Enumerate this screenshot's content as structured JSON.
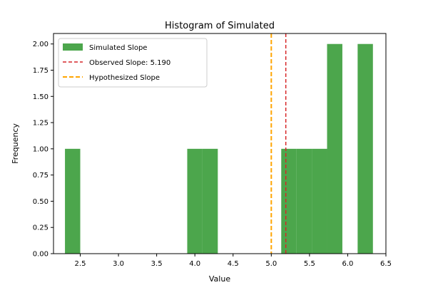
{
  "chart_data": {
    "type": "bar",
    "title": "Histogram of Simulated",
    "xlabel": "Value",
    "ylabel": "Frequency",
    "xlim": [
      2.15,
      6.5
    ],
    "ylim": [
      0,
      2.1
    ],
    "bin_width": 0.2,
    "bars": [
      {
        "x0": 2.3,
        "x1": 2.5,
        "count": 1
      },
      {
        "x0": 3.9,
        "x1": 4.1,
        "count": 1
      },
      {
        "x0": 4.1,
        "x1": 4.3,
        "count": 1
      },
      {
        "x0": 5.13,
        "x1": 5.33,
        "count": 1
      },
      {
        "x0": 5.33,
        "x1": 5.53,
        "count": 1
      },
      {
        "x0": 5.53,
        "x1": 5.73,
        "count": 1
      },
      {
        "x0": 5.73,
        "x1": 5.93,
        "count": 2
      },
      {
        "x0": 6.13,
        "x1": 6.33,
        "count": 2
      }
    ],
    "lines": [
      {
        "name": "Observed Slope: 5.190",
        "x": 5.19,
        "color": "#d62728"
      },
      {
        "name": "Hypothesized Slope",
        "x": 5.0,
        "color": "#ffa500"
      }
    ],
    "series_name": "Simulated Slope",
    "bar_color": "#4ca64c",
    "xticks": [
      "2.5",
      "3.0",
      "3.5",
      "4.0",
      "4.5",
      "5.0",
      "5.5",
      "6.0",
      "6.5"
    ],
    "yticks": [
      "0.00",
      "0.25",
      "0.50",
      "0.75",
      "1.00",
      "1.25",
      "1.50",
      "1.75",
      "2.00"
    ],
    "legend_placement": "top-left",
    "grid": false
  }
}
